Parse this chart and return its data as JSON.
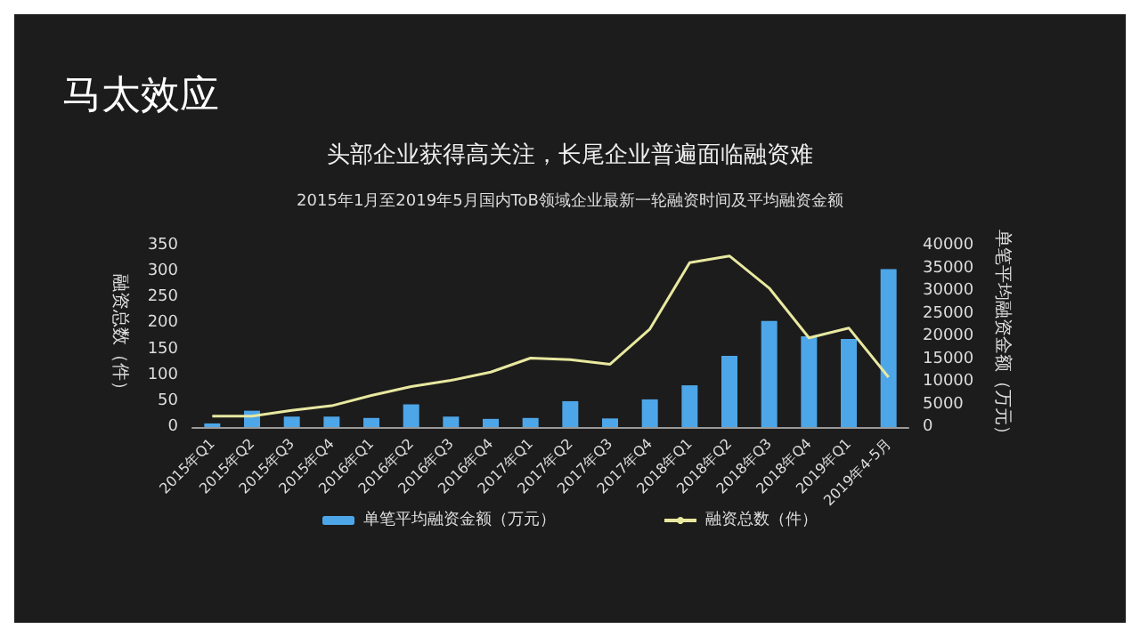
{
  "chart_data": {
    "type": "bar",
    "title": "马太效应",
    "subtitle": "头部企业获得高关注，长尾企业普遍面临融资难",
    "annotations": [
      "2015年1月至2019年5月国内ToB领域企业最新一轮融资时间及平均融资金额"
    ],
    "categories": [
      "2015年Q1",
      "2015年Q2",
      "2015年Q3",
      "2015年Q4",
      "2016年Q1",
      "2016年Q2",
      "2016年Q3",
      "2016年Q4",
      "2017年Q1",
      "2017年Q2",
      "2017年Q3",
      "2017年Q4",
      "2018年Q1",
      "2018年Q2",
      "2018年Q3",
      "2018年Q4",
      "2019年Q1",
      "2019年4-5月"
    ],
    "series": [
      {
        "name": "单笔平均融资金额（万元）",
        "axis": "y2",
        "color": "#4da6e8",
        "values": [
          800,
          3600,
          2300,
          2300,
          2000,
          5000,
          2300,
          1800,
          2000,
          5700,
          1900,
          6100,
          9200,
          15700,
          23400,
          20000,
          19400,
          34800
        ]
      },
      {
        "name": "融资总数（件）",
        "type": "line",
        "color": "#e8e8a0",
        "values": [
          21,
          21,
          32,
          41,
          61,
          78,
          90,
          106,
          133,
          130,
          121,
          189,
          317,
          330,
          268,
          172,
          191,
          96
        ]
      }
    ],
    "ylabel": "融资总数（件）",
    "y2label": "单笔平均融资金额（万元）",
    "ylim": [
      0,
      350
    ],
    "yticks": [
      0,
      50,
      100,
      150,
      200,
      250,
      300,
      350
    ],
    "y2lim": [
      0,
      40000
    ],
    "y2ticks": [
      0,
      5000,
      10000,
      15000,
      20000,
      25000,
      30000,
      35000,
      40000
    ],
    "grid": false,
    "legend": "bottom",
    "marker": "none",
    "line_style": "solid"
  }
}
